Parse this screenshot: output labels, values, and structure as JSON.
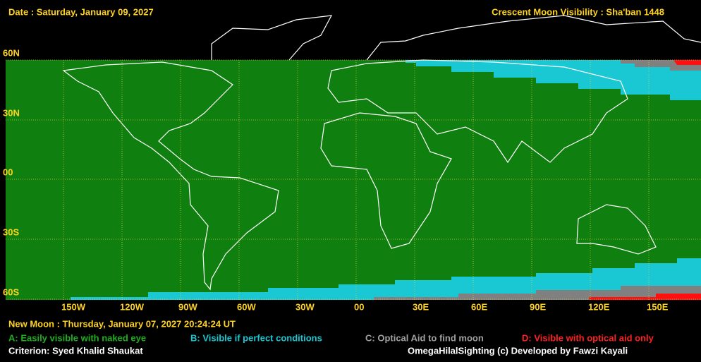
{
  "header": {
    "date": "Date : Saturday, January 09, 2027",
    "title": "Crescent Moon Visibility : Sha'ban  1448"
  },
  "map": {
    "lat_labels": [
      "60N",
      "30N",
      "00",
      "30S",
      "60S"
    ],
    "lon_labels": [
      "150W",
      "120W",
      "90W",
      "60W",
      "30W",
      "00",
      "30E",
      "60E",
      "90E",
      "120E",
      "150E"
    ]
  },
  "footer": {
    "new_moon": "New Moon : Thursday, January 07, 2027  20:24:24  UT",
    "legend": [
      "A: Easily visible with naked eye",
      "B: Visible if perfect conditions",
      "C: Optical Aid to find moon",
      "D: Visible with optical aid only"
    ],
    "criterion": "Criterion: Syed Khalid Shaukat",
    "credit": "OmegaHilalSighting  (c)  Developed by Fawzi Kayali"
  }
}
